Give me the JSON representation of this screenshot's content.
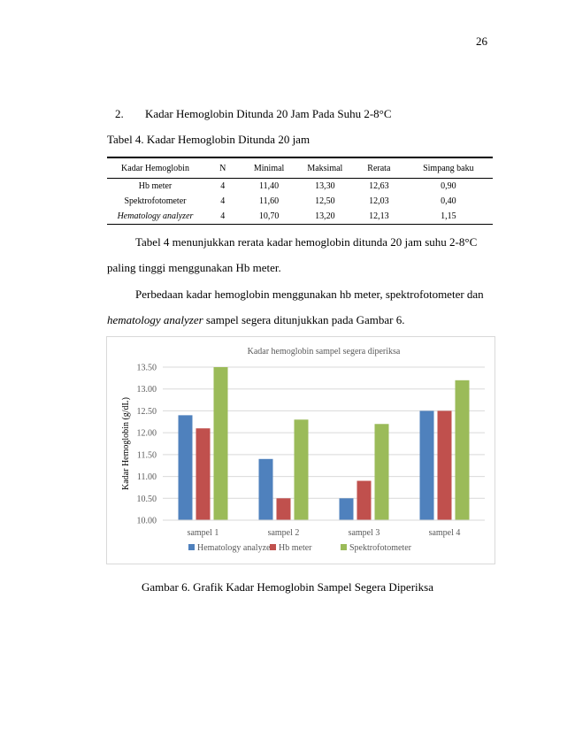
{
  "page": {
    "number": "26",
    "section": {
      "number": "2.",
      "title": "Kadar Hemoglobin Ditunda 20 Jam Pada Suhu 2-8°C"
    },
    "table_caption": "Tabel 4.  Kadar Hemoglobin Ditunda 20 jam",
    "table": {
      "headers": [
        "Kadar Hemoglobin",
        "N",
        "Minimal",
        "Maksimal",
        "Rerata",
        "Simpang baku"
      ],
      "rows": [
        [
          "Hb meter",
          "4",
          "11,40",
          "13,30",
          "12,63",
          "0,90"
        ],
        [
          "Spektrofotometer",
          "4",
          "11,60",
          "12,50",
          "12,03",
          "0,40"
        ],
        [
          "Hematology analyzer",
          "4",
          "10,70",
          "13,20",
          "12,13",
          "1,15"
        ]
      ]
    },
    "paragraph1": {
      "line1": "Tabel 4 menunjukkan rerata kadar hemoglobin ditunda 20 jam suhu 2-8°C",
      "line2": "paling tinggi menggunakan Hb meter."
    },
    "paragraph2": {
      "line1": "Perbedaan kadar hemoglobin menggunakan hb meter, spektrofotometer dan",
      "italic": "hematology analyzer",
      "rest": " sampel segera ditunjukkan pada Gambar 6."
    },
    "figure_caption": "Gambar 6. Grafik Kadar Hemoglobin Sampel Segera Diperiksa"
  },
  "chart_data": {
    "type": "bar",
    "title": "Kadar hemoglobin sampel segera diperiksa",
    "xlabel": "",
    "ylabel": "Kadar Hemoglobin (g/dL)",
    "ylim": [
      10.0,
      13.5
    ],
    "yticks": [
      "10.00",
      "10.50",
      "11.00",
      "11.50",
      "12.00",
      "12.50",
      "13.00",
      "13.50"
    ],
    "categories": [
      "sampel 1",
      "sampel 2",
      "sampel 3",
      "sampel 4"
    ],
    "series": [
      {
        "name": "Hematology analyzer",
        "color": "#4f81bd",
        "values": [
          12.4,
          11.4,
          10.5,
          12.5
        ]
      },
      {
        "name": "Hb meter",
        "color": "#c0504d",
        "values": [
          12.1,
          10.5,
          10.9,
          12.5
        ]
      },
      {
        "name": "Spektrofotometer",
        "color": "#9bbb59",
        "values": [
          13.5,
          12.3,
          12.2,
          13.2
        ]
      }
    ],
    "grid": true,
    "legend_position": "bottom"
  }
}
